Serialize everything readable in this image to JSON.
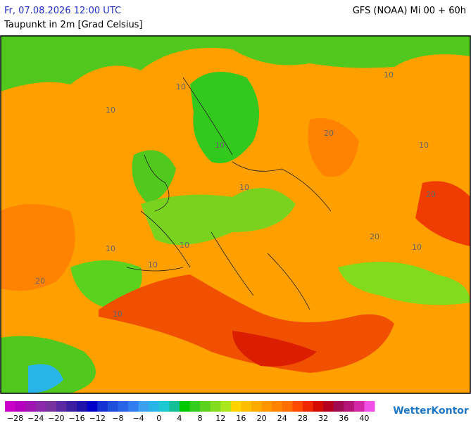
{
  "header": {
    "date": "Fr, 07.08.2026 12:00 UTC",
    "model": "GFS (NOAA) Mi 00 + 60h",
    "subtitle": "Taupunkt in 2m [Grad Celsius]"
  },
  "map": {
    "contour_labels": [
      "10",
      "10",
      "10",
      "10",
      "20",
      "10",
      "10",
      "20",
      "10",
      "10",
      "20",
      "10",
      "10",
      "20",
      "10"
    ]
  },
  "legend": {
    "labels": [
      "−28",
      "−24",
      "−20",
      "−16",
      "−12",
      "−8",
      "−4",
      "0",
      "4",
      "8",
      "12",
      "16",
      "20",
      "24",
      "28",
      "32",
      "36",
      "40"
    ],
    "colors": [
      "#c800c8",
      "#b400be",
      "#a014b4",
      "#8c28aa",
      "#7832a0",
      "#5a28a0",
      "#3c1ea0",
      "#1e14aa",
      "#0000c8",
      "#1432d2",
      "#1e50dc",
      "#2864e6",
      "#327ef0",
      "#3ca0f0",
      "#28b4e6",
      "#1ec8d2",
      "#14be96",
      "#00c800",
      "#32cd1e",
      "#5ad21e",
      "#82dc1e",
      "#aae61e",
      "#ffd200",
      "#ffbe00",
      "#ffaa00",
      "#ff9600",
      "#ff8200",
      "#ff6e00",
      "#ff4b00",
      "#f02800",
      "#d20a00",
      "#b4001e",
      "#a00a50",
      "#b41478",
      "#d228a8",
      "#f050e6"
    ]
  },
  "brand": "WetterKontor"
}
